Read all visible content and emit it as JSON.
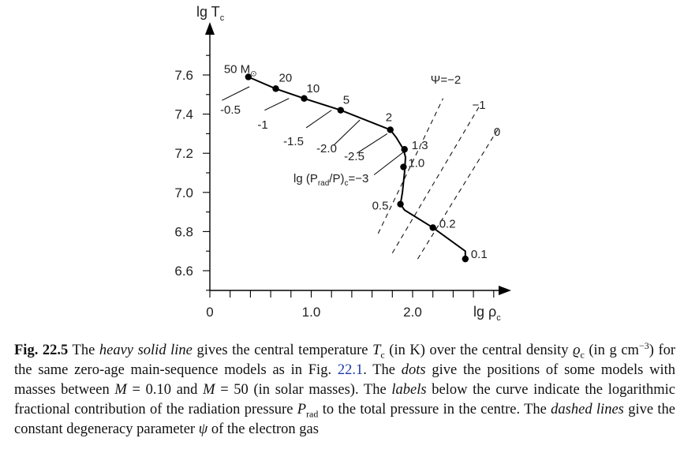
{
  "chart_data": {
    "type": "line",
    "xlabel": "lg ρ",
    "xlabel_sub": "c",
    "ylabel": "lg T",
    "ylabel_sub": "c",
    "xlim": [
      0,
      2.85
    ],
    "ylim": [
      6.505,
      7.78
    ],
    "x_ticks": [
      0,
      1.0,
      2.0
    ],
    "x_tick_labels": [
      "0",
      "1.0",
      "2.0"
    ],
    "y_ticks": [
      6.6,
      6.8,
      7.0,
      7.2,
      7.4,
      7.6
    ],
    "y_tick_labels": [
      "6.6",
      "6.8",
      "7.0",
      "7.2",
      "7.4",
      "7.6"
    ],
    "series": [
      {
        "x": [
          0.38,
          0.65,
          0.93,
          1.29,
          1.78,
          1.84,
          1.91,
          1.93,
          1.92,
          1.9,
          1.88,
          1.92,
          2.2,
          2.52,
          2.52
        ],
        "y": [
          7.59,
          7.53,
          7.48,
          7.42,
          7.32,
          7.28,
          7.22,
          7.18,
          7.1,
          7.0,
          6.94,
          6.91,
          6.82,
          6.7,
          6.66
        ]
      }
    ],
    "mass_points": [
      {
        "label": "50 M",
        "symbol": "⊙",
        "x": 0.38,
        "y": 7.59
      },
      {
        "label": "20",
        "x": 0.65,
        "y": 7.53
      },
      {
        "label": "10",
        "x": 0.93,
        "y": 7.48
      },
      {
        "label": "5",
        "x": 1.29,
        "y": 7.42
      },
      {
        "label": "2",
        "x": 1.78,
        "y": 7.32
      },
      {
        "label": "1.3",
        "x": 1.92,
        "y": 7.22
      },
      {
        "label": "1.0",
        "x": 1.91,
        "y": 7.13
      },
      {
        "label": "0.5",
        "x": 1.88,
        "y": 6.94
      },
      {
        "label": "0.2",
        "x": 2.2,
        "y": 6.82
      },
      {
        "label": "0.1",
        "x": 2.52,
        "y": 6.66
      }
    ],
    "radiation_pressure_labels": [
      {
        "label": "-0.5",
        "x1": 0.12,
        "y1": 7.47,
        "x2": 0.39,
        "y2": 7.54
      },
      {
        "label": "-1",
        "x1": 0.54,
        "y1": 7.42,
        "x2": 0.78,
        "y2": 7.48
      },
      {
        "label": "-1.5",
        "x1": 0.95,
        "y1": 7.33,
        "x2": 1.2,
        "y2": 7.42
      },
      {
        "label": "-2.0",
        "x1": 1.22,
        "y1": 7.24,
        "x2": 1.48,
        "y2": 7.37
      },
      {
        "label": "-2.5",
        "x1": 1.45,
        "y1": 7.2,
        "x2": 1.75,
        "y2": 7.3
      },
      {
        "label": "lg (P",
        "sub": "rad",
        "suffix": "/P)",
        "sub2": "c",
        "value": "=−3",
        "x1": 1.62,
        "y1": 7.09,
        "x2": 1.92,
        "y2": 7.21
      }
    ],
    "degeneracy_lines": [
      {
        "label": "Ψ=−2",
        "x": [
          1.66,
          2.3
        ],
        "y": [
          6.79,
          7.48
        ]
      },
      {
        "label": "−1",
        "x": [
          1.8,
          2.67
        ],
        "y": [
          6.69,
          7.45
        ]
      },
      {
        "label": "0",
        "x": [
          2.05,
          2.85
        ],
        "y": [
          6.66,
          7.33
        ]
      }
    ]
  },
  "caption": {
    "fig_label": "Fig. 22.5",
    "t1": "The ",
    "i1": "heavy solid line",
    "t2": " gives the central temperature ",
    "i2": "T",
    "s2": "c",
    "t3": " (in K) over the central density ",
    "i3": "ϱ",
    "s3": "c",
    "t4": " (in g cm",
    "sup4": "−3",
    "t5": ") for the same zero-age main-sequence models as in Fig. ",
    "ref": "22.1",
    "t6": ". The ",
    "i6": "dots",
    "t7": " give the positions of some models with masses between ",
    "i7": "M",
    "t8": " = 0.10 and ",
    "i8": "M",
    "t9": " = 50 (in solar masses). The ",
    "i9": "labels",
    "t10": " below the curve indicate the logarithmic fractional contribution of the radiation pressure ",
    "i10": "P",
    "s10": "rad",
    "t11": " to the total pressure in the centre. The ",
    "i11": "dashed lines",
    "t12": " give the constant degeneracy parameter ",
    "i12": "ψ",
    "t13": " of the electron gas"
  }
}
